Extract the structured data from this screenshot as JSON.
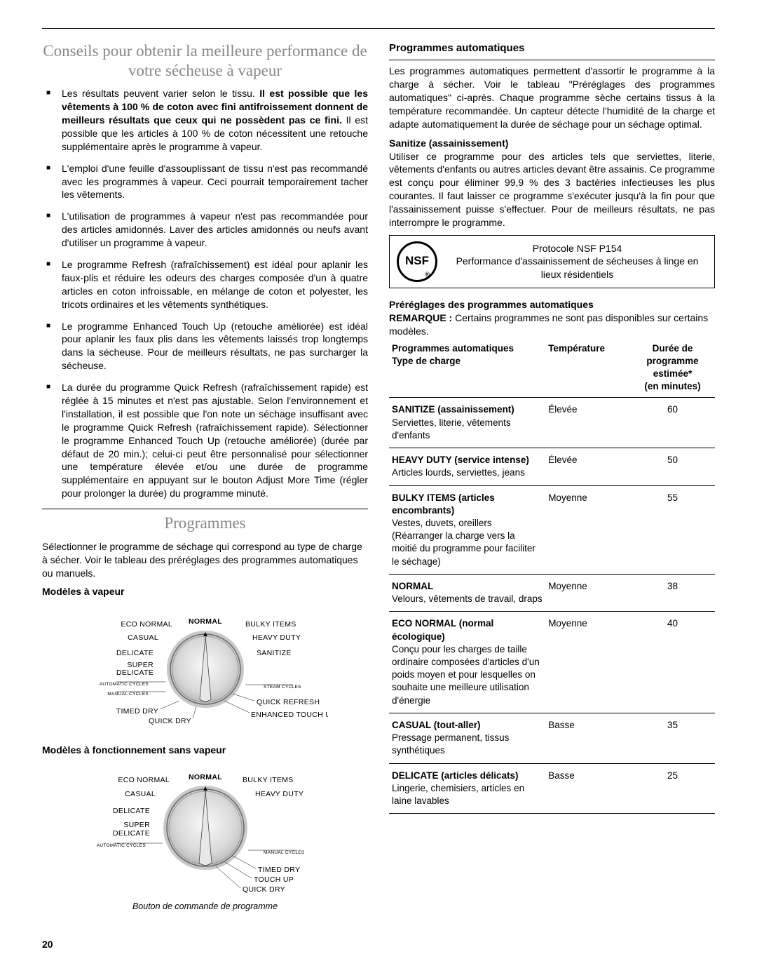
{
  "pageNumber": "20",
  "left": {
    "heading": "Conseils pour obtenir la meilleure performance de votre sécheuse à vapeur",
    "bullets": [
      "Les résultats peuvent varier selon le tissu. <b>Il est possible que les vêtements à 100 % de coton avec fini antifroissement donnent de meilleurs résultats que ceux qui ne possèdent pas ce fini.</b> Il est possible que les articles à 100 % de coton nécessitent une retouche supplémentaire après le programme à vapeur.",
      "L'emploi d'une feuille d'assouplissant de tissu n'est pas recommandé avec les programmes à vapeur. Ceci pourrait temporairement tacher les vêtements.",
      "L'utilisation de programmes à vapeur n'est pas recommandée pour des articles amidonnés. Laver des articles amidonnés ou neufs avant d'utiliser un programme à vapeur.",
      "Le programme Refresh (rafraîchissement) est idéal pour aplanir les faux-plis et réduire les odeurs des charges composée d'un à quatre articles en coton infroissable, en mélange de coton et polyester, les tricots ordinaires et les vêtements synthétiques.",
      "Le programme Enhanced Touch Up (retouche améliorée) est idéal pour aplanir les faux plis dans les vêtements laissés trop longtemps dans la sécheuse. Pour de meilleurs résultats, ne pas surcharger la sécheuse.",
      "La durée du programme Quick Refresh (rafraîchissement rapide) est réglée à 15 minutes et n'est pas ajustable. Selon l'environnement et l'installation, il est possible que l'on note un séchage insuffisant avec le programme Quick Refresh (rafraîchissement rapide). Sélectionner le programme Enhanced Touch Up (retouche améliorée) (durée par défaut de 20 min.); celui-ci peut être personnalisé pour sélectionner une température élevée et/ou une durée de programme supplémentaire en appuyant sur le bouton Adjust More Time (régler pour prolonger la durée) du programme minuté."
    ],
    "programmesTitle": "Programmes",
    "programmesIntro": "Sélectionner le programme de séchage qui correspond au type de charge à sécher. Voir le tableau des préréglages des programmes automatiques ou manuels.",
    "dial1Title": "Modèles à vapeur",
    "dial2Title": "Modèles à fonctionnement sans vapeur",
    "dialCaption": "Bouton de commande de programme",
    "dial1": {
      "labels": [
        "ECO NORMAL",
        "NORMAL",
        "BULKY ITEMS",
        "CASUAL",
        "HEAVY DUTY",
        "DELICATE",
        "SANITIZE",
        "SUPER DELICATE",
        "TIMED DRY",
        "QUICK DRY",
        "QUICK REFRESH",
        "ENHANCED TOUCH UP"
      ],
      "sections": [
        "AUTOMATIC CYCLES",
        "MANUAL CYCLES",
        "STEAM CYCLES"
      ]
    },
    "dial2": {
      "labels": [
        "ECO NORMAL",
        "NORMAL",
        "BULKY ITEMS",
        "CASUAL",
        "HEAVY DUTY",
        "DELICATE",
        "SUPER DELICATE",
        "TIMED DRY",
        "TOUCH UP",
        "QUICK DRY"
      ],
      "sections": [
        "AUTOMATIC CYCLES",
        "MANUAL CYCLES"
      ]
    }
  },
  "right": {
    "autoTitle": "Programmes automatiques",
    "autoIntro": "Les programmes automatiques permettent d'assortir le programme à la charge à sécher. Voir le tableau \"Préréglages des programmes automatiques\" ci-après. Chaque programme sèche certains tissus à la température recommandée. Un capteur détecte l'humidité de la charge et adapte automatiquement la durée de séchage pour un séchage optimal.",
    "sanitizeTitle": "Sanitize (assainissement)",
    "sanitizeText": "Utiliser ce programme pour des articles tels que serviettes, literie, vêtements d'enfants ou autres articles devant être assainis. Ce programme est conçu pour éliminer 99,9 % des 3 bactéries infectieuses les plus courantes. Il faut laisser ce programme s'exécuter jusqu'à la fin pour que l'assainissement puisse s'effectuer. Pour de meilleurs résultats, ne pas interrompre le programme.",
    "nsf": {
      "logo": "NSF",
      "line1": "Protocole NSF P154",
      "line2": "Performance d'assainissement de sécheuses à linge en lieux résidentiels"
    },
    "presetsTitle": "Préréglages des programmes automatiques",
    "presetsNote": "REMARQUE :",
    "presetsNoteText": " Certains programmes ne sont pas disponibles sur certains modèles.",
    "tableHeaders": {
      "col1a": "Programmes automatiques",
      "col1b": "Type de charge",
      "col2": "Température",
      "col3a": "Durée de programme estimée*",
      "col3b": "(en minutes)"
    },
    "rows": [
      {
        "name": "SANITIZE (assainissement)",
        "desc": "Serviettes, literie, vêtements d'enfants",
        "temp": "Élevée",
        "time": "60"
      },
      {
        "name": "HEAVY DUTY (service intense)",
        "desc": "Articles lourds, serviettes, jeans",
        "temp": "Élevée",
        "time": "50"
      },
      {
        "name": "BULKY ITEMS (articles encombrants)",
        "desc": "Vestes, duvets, oreillers (Réarranger la charge vers la moitié du programme pour faciliter le séchage)",
        "temp": "Moyenne",
        "time": "55"
      },
      {
        "name": "NORMAL",
        "desc": "Velours, vêtements de travail, draps",
        "temp": "Moyenne",
        "time": "38"
      },
      {
        "name": "ECO NORMAL (normal écologique)",
        "desc": "Conçu pour les charges de taille ordinaire composées d'articles d'un poids moyen et pour lesquelles on souhaite une meilleure utilisation d'énergie",
        "temp": "Moyenne",
        "time": "40"
      },
      {
        "name": "CASUAL (tout-aller)",
        "desc": "Pressage permanent, tissus synthétiques",
        "temp": "Basse",
        "time": "35"
      },
      {
        "name": "DELICATE (articles délicats)",
        "desc": "Lingerie, chemisiers, articles en laine lavables",
        "temp": "Basse",
        "time": "25"
      }
    ]
  }
}
